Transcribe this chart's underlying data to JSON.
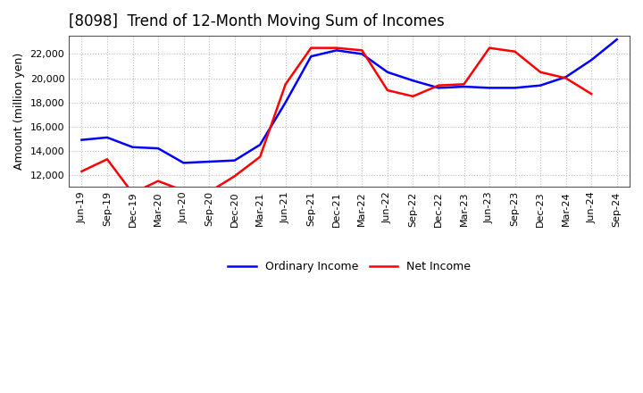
{
  "title": "[8098]  Trend of 12-Month Moving Sum of Incomes",
  "ylabel": "Amount (million yen)",
  "x_labels": [
    "Jun-19",
    "Sep-19",
    "Dec-19",
    "Mar-20",
    "Jun-20",
    "Sep-20",
    "Dec-20",
    "Mar-21",
    "Jun-21",
    "Sep-21",
    "Dec-21",
    "Mar-22",
    "Jun-22",
    "Sep-22",
    "Dec-22",
    "Mar-23",
    "Jun-23",
    "Sep-23",
    "Dec-23",
    "Mar-24",
    "Jun-24",
    "Sep-24"
  ],
  "ordinary_income": [
    14900,
    15100,
    14300,
    14200,
    13000,
    13100,
    13200,
    14500,
    18000,
    21800,
    22300,
    22000,
    20500,
    19800,
    19200,
    19300,
    19200,
    19200,
    19400,
    20100,
    21500,
    23200
  ],
  "net_income": [
    12300,
    13300,
    10500,
    11500,
    10700,
    10600,
    11900,
    13500,
    19500,
    22500,
    22500,
    22300,
    19000,
    18500,
    19400,
    19500,
    22500,
    22200,
    20500,
    20000,
    18700,
    null
  ],
  "ordinary_color": "#0000FF",
  "net_color": "#FF0000",
  "background_color": "#FFFFFF",
  "grid_color": "#BBBBBB",
  "ylim": [
    11000,
    23500
  ],
  "yticks": [
    12000,
    14000,
    16000,
    18000,
    20000,
    22000
  ],
  "legend_labels": [
    "Ordinary Income",
    "Net Income"
  ],
  "title_fontsize": 12,
  "axis_fontsize": 9,
  "tick_fontsize": 8,
  "line_width": 1.8
}
